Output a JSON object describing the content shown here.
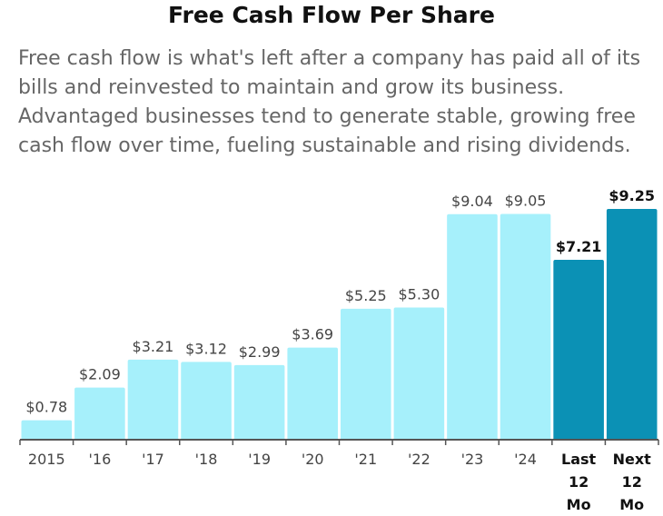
{
  "header": {
    "title": "Free Cash Flow Per Share",
    "description": [
      "Free cash flow is what's left after a company has paid all of its",
      "bills and reinvested to maintain and grow its business.",
      "Advantaged businesses tend to generate stable, growing free",
      "cash flow over time, fueling sustainable and rising dividends."
    ]
  },
  "colors": {
    "bar_light": "#a6f0fb",
    "bar_dark": "#0b91b5",
    "axis": "#555555"
  },
  "chart_data": {
    "type": "bar",
    "title": "Free Cash Flow Per Share",
    "xlabel": "",
    "ylabel": "",
    "categories": [
      "2015",
      "'16",
      "'17",
      "'18",
      "'19",
      "'20",
      "'21",
      "'22",
      "'23",
      "'24",
      "Last 12 Mo",
      "Next 12 Mo"
    ],
    "tick_lines": [
      [
        "2015"
      ],
      [
        "'16"
      ],
      [
        "'17"
      ],
      [
        "'18"
      ],
      [
        "'19"
      ],
      [
        "'20"
      ],
      [
        "'21"
      ],
      [
        "'22"
      ],
      [
        "'23"
      ],
      [
        "'24"
      ],
      [
        "Last",
        "12",
        "Mo"
      ],
      [
        "Next",
        "12",
        "Mo"
      ]
    ],
    "values": [
      0.78,
      2.09,
      3.21,
      3.12,
      2.99,
      3.69,
      5.25,
      5.3,
      9.04,
      9.05,
      7.21,
      9.25
    ],
    "value_labels": [
      "$0.78",
      "$2.09",
      "$3.21",
      "$3.12",
      "$2.99",
      "$3.69",
      "$5.25",
      "$5.30",
      "$9.04",
      "$9.05",
      "$7.21",
      "$9.25"
    ],
    "highlighted": [
      false,
      false,
      false,
      false,
      false,
      false,
      false,
      false,
      false,
      false,
      true,
      true
    ],
    "ylim": [
      0,
      9.25
    ],
    "grid": false
  }
}
